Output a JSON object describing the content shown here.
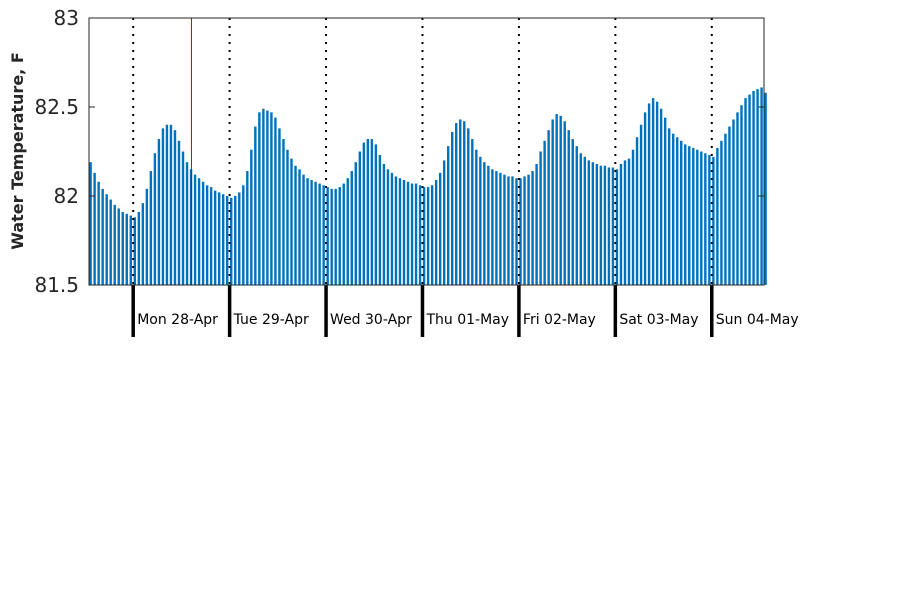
{
  "chart_data": {
    "type": "bar",
    "ylabel": "Water Temperature, F",
    "ylim": [
      81.5,
      83
    ],
    "yticks": [
      "81.5",
      "82",
      "82.5",
      "83"
    ],
    "x_unit": "hours from start of plot",
    "x_range": [
      0,
      168
    ],
    "bar_interval_hours": 1,
    "bar_color": "#0072BD",
    "days": [
      {
        "label": "Mon 28-Apr",
        "start_hour": 11
      },
      {
        "label": "Tue 29-Apr",
        "start_hour": 35
      },
      {
        "label": "Wed 30-Apr",
        "start_hour": 59
      },
      {
        "label": "Thu 01-May",
        "start_hour": 83
      },
      {
        "label": "Fri 02-May",
        "start_hour": 107
      },
      {
        "label": "Sat 03-May",
        "start_hour": 131
      },
      {
        "label": "Sun 04-May",
        "start_hour": 155
      }
    ],
    "current_time_marker": {
      "hour": 25.5,
      "color": "#d40000"
    },
    "values": [
      82.19,
      82.13,
      82.08,
      82.04,
      82.01,
      81.98,
      81.95,
      81.93,
      81.91,
      81.9,
      81.89,
      81.88,
      81.91,
      81.96,
      82.04,
      82.14,
      82.24,
      82.32,
      82.38,
      82.4,
      82.4,
      82.37,
      82.31,
      82.25,
      82.19,
      82.15,
      82.12,
      82.1,
      82.08,
      82.06,
      82.05,
      82.03,
      82.02,
      82.01,
      82.0,
      81.99,
      82.0,
      82.02,
      82.06,
      82.14,
      82.26,
      82.39,
      82.47,
      82.49,
      82.48,
      82.47,
      82.44,
      82.38,
      82.32,
      82.26,
      82.21,
      82.17,
      82.15,
      82.12,
      82.1,
      82.09,
      82.08,
      82.07,
      82.06,
      82.05,
      82.04,
      82.04,
      82.05,
      82.07,
      82.1,
      82.14,
      82.19,
      82.25,
      82.3,
      82.32,
      82.32,
      82.29,
      82.23,
      82.18,
      82.15,
      82.13,
      82.11,
      82.1,
      82.09,
      82.08,
      82.07,
      82.07,
      82.06,
      82.05,
      82.05,
      82.06,
      82.09,
      82.13,
      82.2,
      82.28,
      82.36,
      82.41,
      82.43,
      82.42,
      82.38,
      82.32,
      82.26,
      82.22,
      82.19,
      82.17,
      82.15,
      82.14,
      82.13,
      82.12,
      82.11,
      82.11,
      82.1,
      82.1,
      82.11,
      82.12,
      82.14,
      82.18,
      82.25,
      82.31,
      82.37,
      82.43,
      82.46,
      82.45,
      82.42,
      82.37,
      82.32,
      82.28,
      82.24,
      82.22,
      82.2,
      82.19,
      82.18,
      82.17,
      82.17,
      82.16,
      82.16,
      82.15,
      82.18,
      82.2,
      82.21,
      82.26,
      82.33,
      82.4,
      82.47,
      82.52,
      82.55,
      82.53,
      82.49,
      82.44,
      82.38,
      82.35,
      82.33,
      82.31,
      82.29,
      82.28,
      82.27,
      82.26,
      82.25,
      82.24,
      82.23,
      82.22,
      82.27,
      82.31,
      82.35,
      82.39,
      82.43,
      82.47,
      82.51,
      82.55,
      82.57,
      82.59,
      82.6,
      82.61,
      82.58
    ]
  }
}
